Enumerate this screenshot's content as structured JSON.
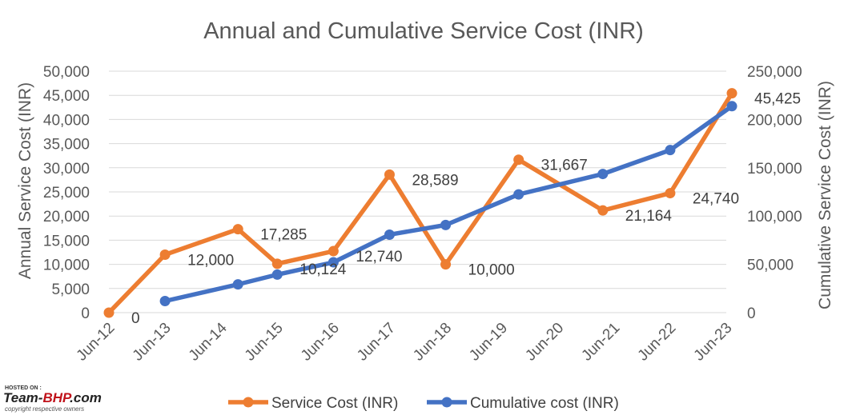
{
  "chart_data": {
    "type": "line",
    "title": "Annual and Cumulative Service Cost (INR)",
    "categories": [
      "Jun-12",
      "Jun-13",
      "Jun-14",
      "Jun-15",
      "Jun-16",
      "Jun-17",
      "Jun-18",
      "Jun-19",
      "Jun-20",
      "Jun-21",
      "Jun-22",
      "Jun-23"
    ],
    "ylabel": "Annual Service Cost (INR)",
    "y2label": "Cumulative Service Cost (INR)",
    "ylim": [
      0,
      50000
    ],
    "y2lim": [
      0,
      250000
    ],
    "yticks": [
      "0",
      "5,000",
      "10,000",
      "15,000",
      "20,000",
      "25,000",
      "30,000",
      "35,000",
      "40,000",
      "45,000",
      "50,000"
    ],
    "y2ticks": [
      "0",
      "50,000",
      "100,000",
      "150,000",
      "200,000",
      "250,000"
    ],
    "grid": true,
    "legend": "bottom",
    "series": [
      {
        "name": "Service Cost (INR)",
        "axis": "left",
        "color": "#ED7D31",
        "points": [
          {
            "x": 0.0,
            "y": 0,
            "label": "0"
          },
          {
            "x": 1.0,
            "y": 12000,
            "label": "12,000"
          },
          {
            "x": 2.3,
            "y": 17285,
            "label": "17,285"
          },
          {
            "x": 3.0,
            "y": 10124,
            "label": "10,124"
          },
          {
            "x": 4.0,
            "y": 12740,
            "label": "12,740"
          },
          {
            "x": 5.0,
            "y": 28589,
            "label": "28,589"
          },
          {
            "x": 6.0,
            "y": 10000,
            "label": "10,000"
          },
          {
            "x": 7.3,
            "y": 31667,
            "label": "31,667"
          },
          {
            "x": 8.8,
            "y": 21164,
            "label": "21,164"
          },
          {
            "x": 10.0,
            "y": 24740,
            "label": "24,740"
          },
          {
            "x": 11.1,
            "y": 45425,
            "label": "45,425"
          }
        ]
      },
      {
        "name": "Cumulative cost (INR)",
        "axis": "right",
        "color": "#4472C4",
        "points": [
          {
            "x": 1.0,
            "y": 12000
          },
          {
            "x": 2.3,
            "y": 29285
          },
          {
            "x": 3.0,
            "y": 39409
          },
          {
            "x": 4.0,
            "y": 52149
          },
          {
            "x": 5.0,
            "y": 80738
          },
          {
            "x": 6.0,
            "y": 90738
          },
          {
            "x": 7.3,
            "y": 122405
          },
          {
            "x": 8.8,
            "y": 143569
          },
          {
            "x": 10.0,
            "y": 168309
          },
          {
            "x": 11.1,
            "y": 213734
          }
        ]
      }
    ]
  },
  "watermark": {
    "hosted": "HOSTED ON :",
    "brand_prefix": "Team-",
    "brand_main": "BHP",
    "brand_suffix": ".com",
    "copyright": "copyright respective owners"
  }
}
